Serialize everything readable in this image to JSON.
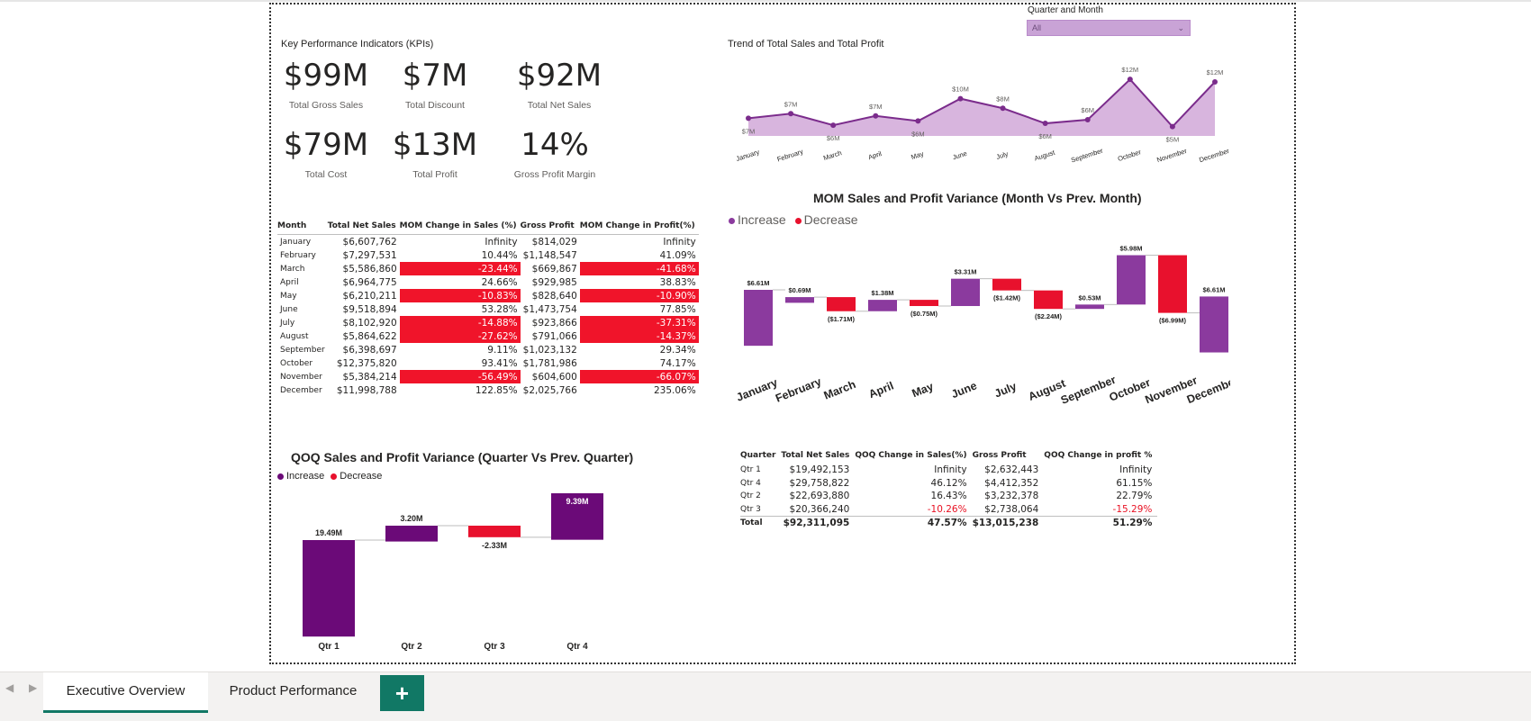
{
  "kpi_section": {
    "title": "Key Performance Indicators (KPIs)",
    "cards": [
      {
        "value": "$99M",
        "label": "Total Gross Sales"
      },
      {
        "value": "$7M",
        "label": "Total Discount"
      },
      {
        "value": "$92M",
        "label": "Total Net Sales"
      },
      {
        "value": "$79M",
        "label": "Total Cost"
      },
      {
        "value": "$13M",
        "label": "Total Profit"
      },
      {
        "value": "14%",
        "label": "Gross Profit Margin"
      }
    ]
  },
  "slicer": {
    "title": "Quarter and Month",
    "value": "All"
  },
  "trend_chart": {
    "title": "Trend of Total Sales and Total Profit",
    "months": [
      "January",
      "February",
      "March",
      "April",
      "May",
      "June",
      "July",
      "August",
      "September",
      "October",
      "November",
      "December"
    ],
    "sales_labels": [
      "$7M",
      "$7M",
      "$6M",
      "$7M",
      "$6M",
      "$10M",
      "$8M",
      "$6M",
      "$6M",
      "$12M",
      "$5M",
      "$12M"
    ],
    "line_color": "#7b2c8c",
    "area_color": "#d8b5de"
  },
  "monthly_table": {
    "headers": [
      "Month",
      "Total Net Sales",
      "MOM Change in Sales (%)",
      "Gross Profit",
      "MOM Change in Profit(%)"
    ],
    "rows": [
      [
        "January",
        "$6,607,762",
        "Infinity",
        "$814,029",
        "Infinity"
      ],
      [
        "February",
        "$7,297,531",
        "10.44%",
        "$1,148,547",
        "41.09%"
      ],
      [
        "March",
        "$5,586,860",
        "-23.44%",
        "$669,867",
        "-41.68%"
      ],
      [
        "April",
        "$6,964,775",
        "24.66%",
        "$929,985",
        "38.83%"
      ],
      [
        "May",
        "$6,210,211",
        "-10.83%",
        "$828,640",
        "-10.90%"
      ],
      [
        "June",
        "$9,518,894",
        "53.28%",
        "$1,473,754",
        "77.85%"
      ],
      [
        "July",
        "$8,102,920",
        "-14.88%",
        "$923,866",
        "-37.31%"
      ],
      [
        "August",
        "$5,864,622",
        "-27.62%",
        "$791,066",
        "-14.37%"
      ],
      [
        "September",
        "$6,398,697",
        "9.11%",
        "$1,023,132",
        "29.34%"
      ],
      [
        "October",
        "$12,375,820",
        "93.41%",
        "$1,781,986",
        "74.17%"
      ],
      [
        "November",
        "$5,384,214",
        "-56.49%",
        "$604,600",
        "-66.07%"
      ],
      [
        "December",
        "$11,998,788",
        "122.85%",
        "$2,025,766",
        "235.06%"
      ]
    ],
    "negative_color": "#f0142a"
  },
  "mom_chart": {
    "title": "MOM Sales and Profit Variance (Month Vs Prev. Month)",
    "legend": {
      "increase": "Increase",
      "decrease": "Decrease"
    }
  },
  "qoq_chart": {
    "title": "QOQ Sales and Profit Variance (Quarter Vs Prev. Quarter)",
    "legend": {
      "increase": "Increase",
      "decrease": "Decrease"
    }
  },
  "quarter_table": {
    "headers": [
      "Quarter",
      "Total Net Sales",
      "QOQ Change in Sales(%)",
      "Gross Profit",
      "QOQ Change in profit %"
    ],
    "rows": [
      [
        "Qtr 1",
        "$19,492,153",
        "Infinity",
        "$2,632,443",
        "Infinity"
      ],
      [
        "Qtr 4",
        "$29,758,822",
        "46.12%",
        "$4,412,352",
        "61.15%"
      ],
      [
        "Qtr 2",
        "$22,693,880",
        "16.43%",
        "$3,232,378",
        "22.79%"
      ],
      [
        "Qtr 3",
        "$20,366,240",
        "-10.26%",
        "$2,738,064",
        "-15.29%"
      ]
    ],
    "total": [
      "Total",
      "$92,311,095",
      "47.57%",
      "$13,015,238",
      "51.29%"
    ]
  },
  "colors": {
    "increase": "#8b3a9e",
    "increase_dark": "#6b0a78",
    "decrease": "#e8112d",
    "accent": "#117865"
  },
  "tabs": [
    {
      "label": "Executive Overview",
      "active": true
    },
    {
      "label": "Product Performance",
      "active": false
    }
  ],
  "add_tab_icon": "plus-icon",
  "chart_data": [
    {
      "type": "area",
      "title": "Trend of Total Sales and Total Profit",
      "categories": [
        "January",
        "February",
        "March",
        "April",
        "May",
        "June",
        "July",
        "August",
        "September",
        "October",
        "November",
        "December"
      ],
      "series": [
        {
          "values": [
            6.61,
            7.3,
            5.59,
            6.96,
            6.21,
            9.52,
            8.1,
            5.86,
            6.4,
            12.38,
            5.38,
            12.0
          ]
        }
      ],
      "data_labels": [
        "$7M",
        "$7M",
        "$6M",
        "$7M",
        "$6M",
        "$10M",
        "$8M",
        "$6M",
        "$6M",
        "$12M",
        "$5M",
        "$12M"
      ]
    },
    {
      "type": "bar",
      "subtype": "waterfall",
      "title": "MOM Sales and Profit Variance (Month Vs Prev. Month)",
      "categories": [
        "January",
        "February",
        "March",
        "April",
        "May",
        "June",
        "July",
        "August",
        "September",
        "October",
        "November",
        "December"
      ],
      "values": [
        6.61,
        0.69,
        -1.71,
        1.38,
        -0.75,
        3.31,
        -1.42,
        -2.24,
        0.53,
        5.98,
        -6.99,
        6.61
      ],
      "data_labels": [
        "$6.61M",
        "$0.69M",
        "($1.71M)",
        "$1.38M",
        "($0.75M)",
        "$3.31M",
        "($1.42M)",
        "($2.24M)",
        "$0.53M",
        "$5.98M",
        "($6.99M)",
        "$6.61M"
      ],
      "legend": [
        "Increase",
        "Decrease"
      ]
    },
    {
      "type": "bar",
      "subtype": "waterfall",
      "title": "QOQ Sales and Profit Variance (Quarter Vs Prev. Quarter)",
      "categories": [
        "Qtr 1",
        "Qtr 2",
        "Qtr 3",
        "Qtr 4"
      ],
      "values": [
        19.49,
        3.2,
        -2.33,
        9.39
      ],
      "data_labels": [
        "19.49M",
        "3.20M",
        "-2.33M",
        "9.39M"
      ],
      "legend": [
        "Increase",
        "Decrease"
      ]
    }
  ]
}
